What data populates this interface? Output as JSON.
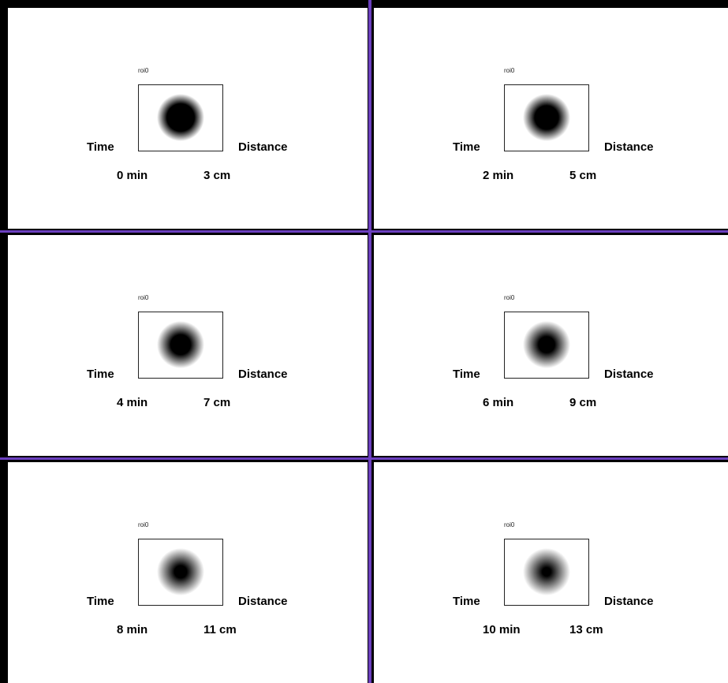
{
  "panels": [
    {
      "roi_label": "roi0",
      "time_label": "Time",
      "distance_label": "Distance",
      "time_value": "0 min",
      "distance_value": "3 cm"
    },
    {
      "roi_label": "roi0",
      "time_label": "Time",
      "distance_label": "Distance",
      "time_value": "2 min",
      "distance_value": "5 cm"
    },
    {
      "roi_label": "roi0",
      "time_label": "Time",
      "distance_label": "Distance",
      "time_value": "4 min",
      "distance_value": "7 cm"
    },
    {
      "roi_label": "roi0",
      "time_label": "Time",
      "distance_label": "Distance",
      "time_value": "6 min",
      "distance_value": "9 cm"
    },
    {
      "roi_label": "roi0",
      "time_label": "Time",
      "distance_label": "Distance",
      "time_value": "8 min",
      "distance_value": "11 cm"
    },
    {
      "roi_label": "roi0",
      "time_label": "Time",
      "distance_label": "Distance",
      "time_value": "10 min",
      "distance_value": "13 cm"
    }
  ]
}
